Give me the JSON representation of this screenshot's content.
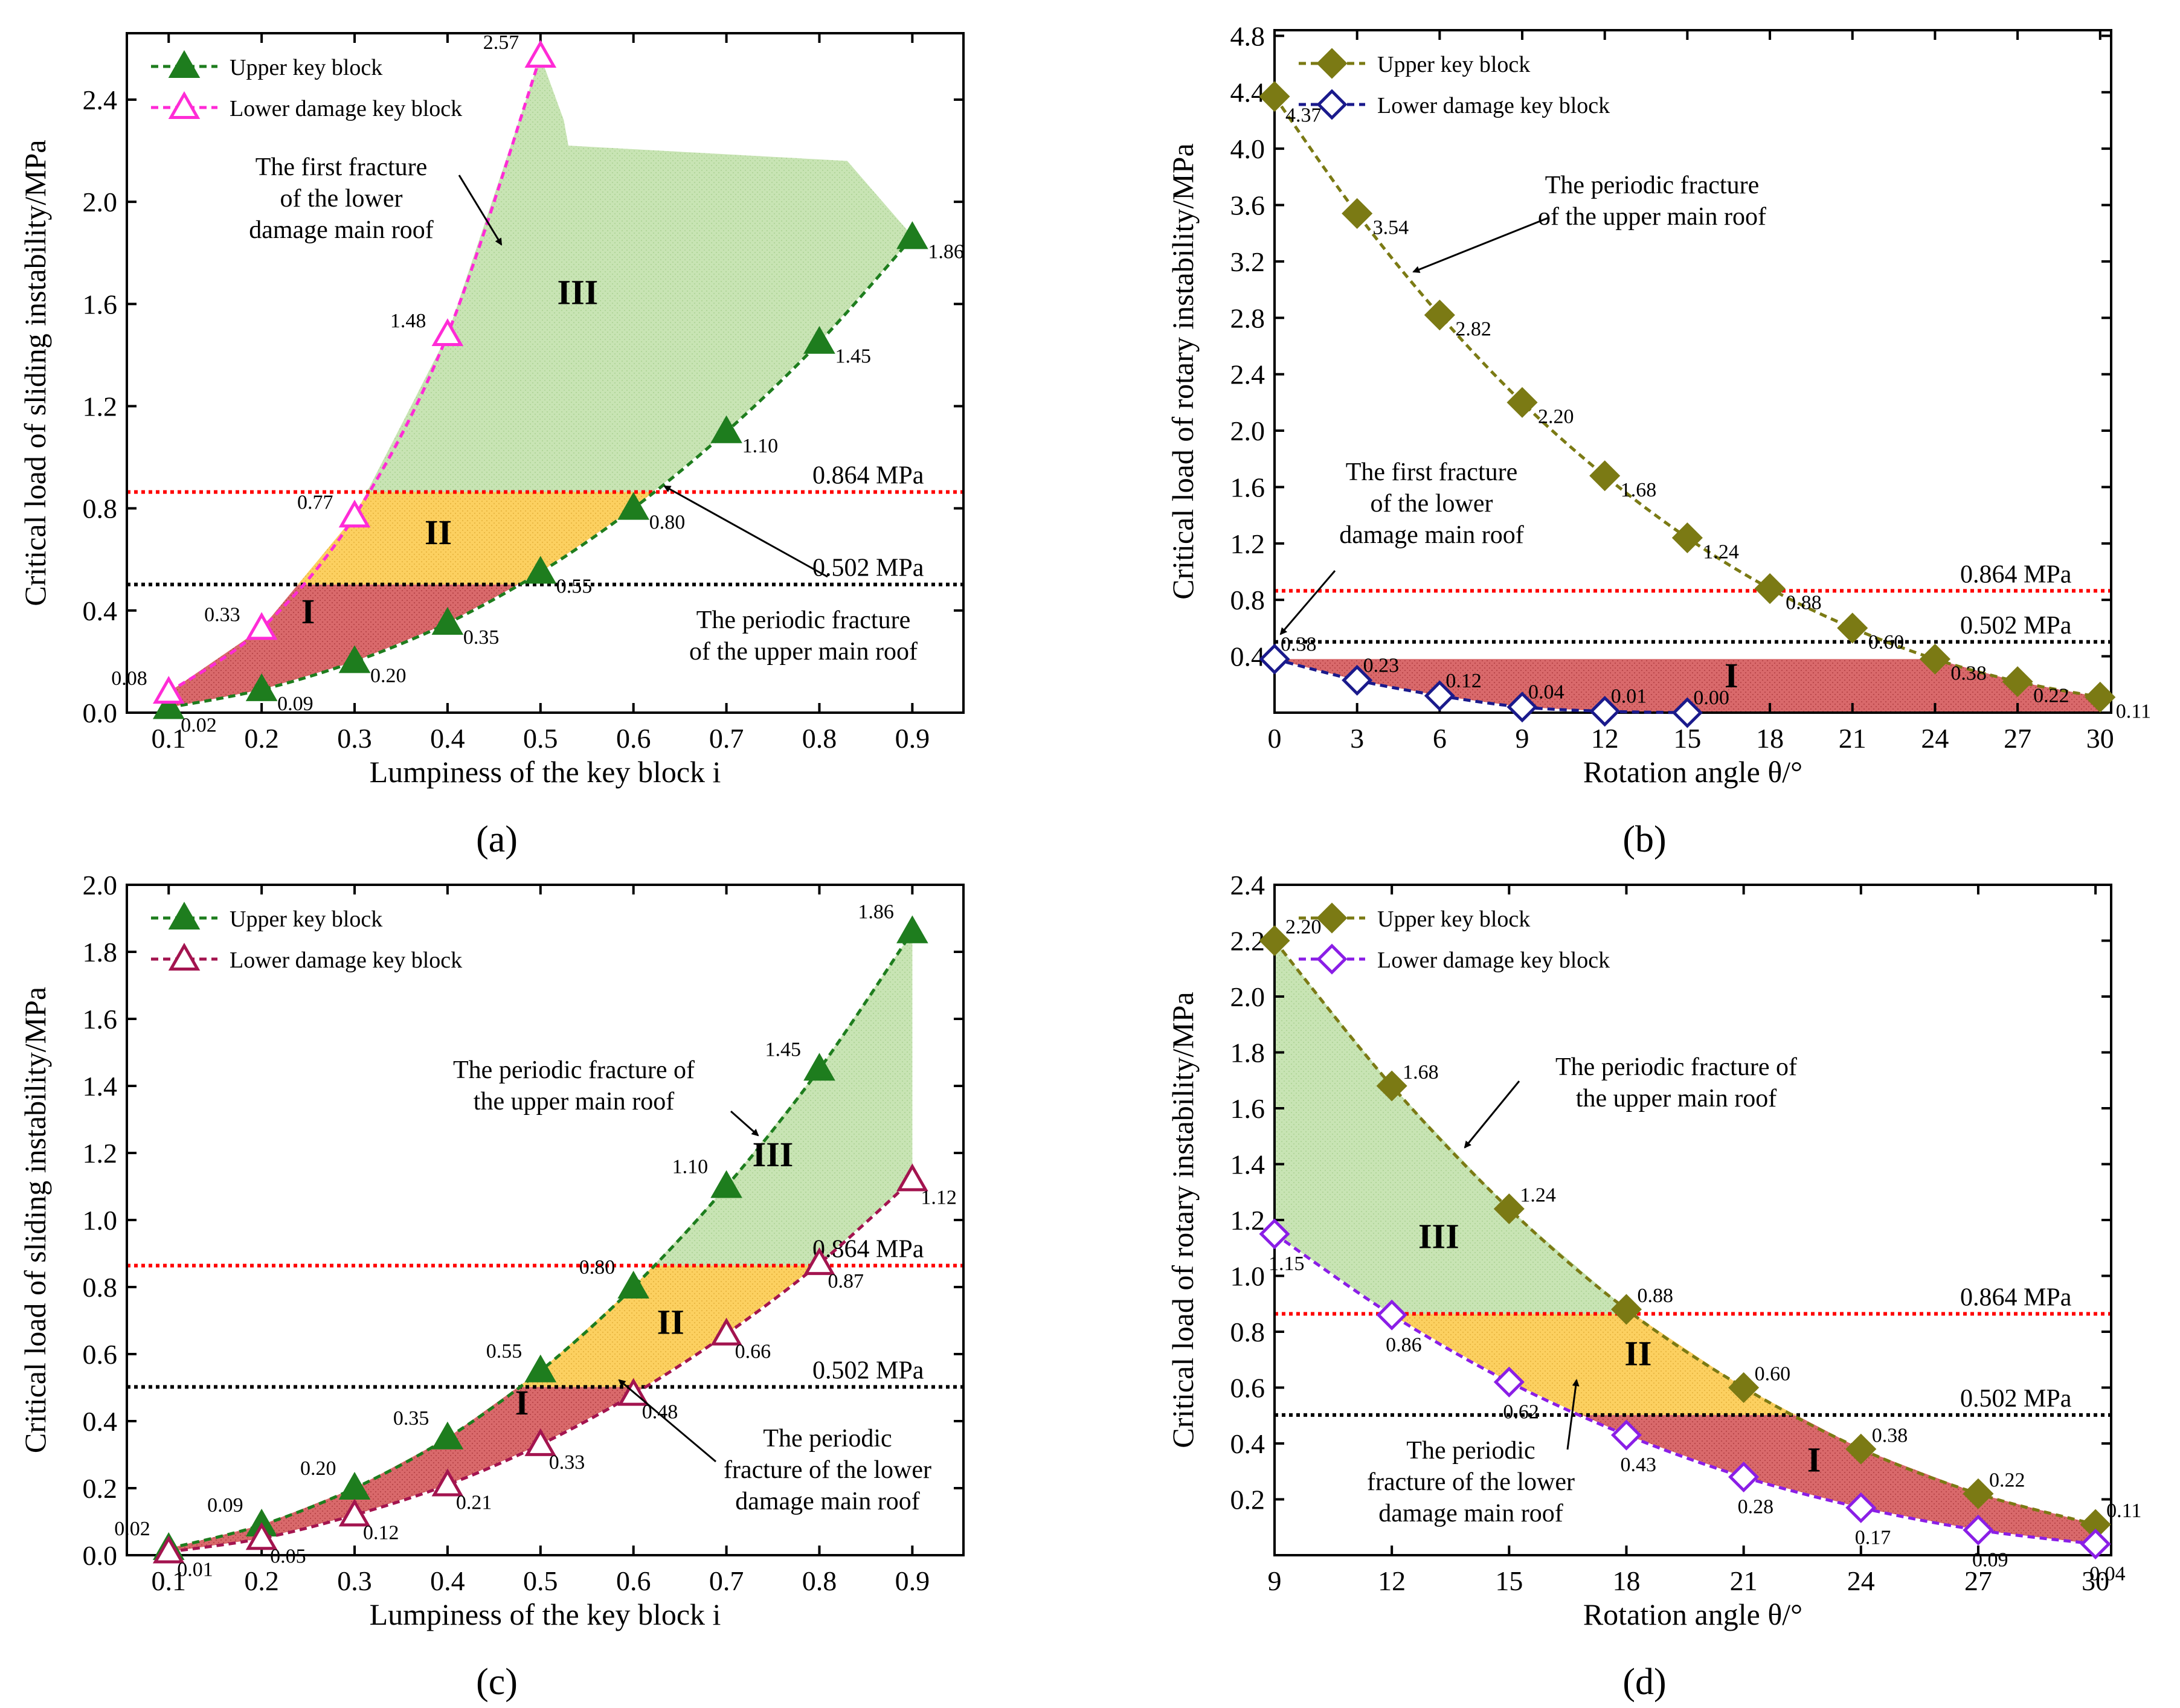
{
  "colors": {
    "upper_green": "#1e7d1e",
    "lower_magenta": "#ff2bd6",
    "olive": "#7b7a14",
    "navy": "#1a1a8c",
    "maroon": "#a3144f",
    "violet": "#8a1ee6",
    "red_line": "#ff0000",
    "black_line": "#000000",
    "region_I": "#d9696b",
    "region_II": "#fcd060",
    "region_III": "#c8e4b4"
  },
  "chart_data": [
    {
      "type": "line",
      "panel": "(a)",
      "xlabel": "Lumpiness of the key block i",
      "ylabel": "Critical load of sliding instability/MPa",
      "xlim": [
        0,
        0.95
      ],
      "ylim": [
        0,
        2.6
      ],
      "xticks": [
        "0.1",
        "0.2",
        "0.3",
        "0.4",
        "0.5",
        "0.6",
        "0.7",
        "0.8",
        "0.9"
      ],
      "yticks": [
        "0.0",
        "0.4",
        "0.8",
        "1.2",
        "1.6",
        "2.0",
        "2.4"
      ],
      "series": [
        {
          "name": "Upper key block",
          "x": [
            0.1,
            0.2,
            0.3,
            0.4,
            0.5,
            0.6,
            0.7,
            0.8,
            0.9
          ],
          "values": [
            0.02,
            0.09,
            0.2,
            0.35,
            0.55,
            0.8,
            1.1,
            1.45,
            1.86
          ],
          "labels": [
            "0.02",
            "0.09",
            "0.20",
            "0.35",
            "0.55",
            "0.80",
            "1.10",
            "1.45",
            "1.86"
          ],
          "color": "#1e7d1e",
          "marker": "filled-triangle"
        },
        {
          "name": "Lower damage key block",
          "x": [
            0.1,
            0.2,
            0.3,
            0.4,
            0.5
          ],
          "values": [
            0.08,
            0.33,
            0.77,
            1.48,
            2.57
          ],
          "labels": [
            "0.08",
            "0.33",
            "0.77",
            "1.48",
            "2.57"
          ],
          "color": "#ff2bd6",
          "marker": "open-triangle"
        }
      ],
      "hlines": [
        {
          "y": 0.864,
          "label": "0.864 MPa",
          "color": "#ff0000"
        },
        {
          "y": 0.502,
          "label": "0.502 MPa",
          "color": "#000000"
        }
      ],
      "regions": [
        "I",
        "II",
        "III"
      ],
      "annotations": [
        {
          "text": [
            "The first fracture",
            "of the lower",
            "damage main roof"
          ]
        },
        {
          "text": [
            "The periodic fracture",
            "of the upper main roof"
          ]
        }
      ],
      "panel_label": "a"
    },
    {
      "type": "line",
      "panel": "(b)",
      "xlabel": "Rotation angle θ/°",
      "ylabel": "Critical load of rotary instability/MPa",
      "xlim": [
        0,
        30
      ],
      "ylim": [
        0,
        4.8
      ],
      "xticks": [
        "0",
        "3",
        "6",
        "9",
        "12",
        "15",
        "18",
        "21",
        "24",
        "27",
        "30"
      ],
      "yticks": [
        "0.4",
        "0.8",
        "1.2",
        "1.6",
        "2.0",
        "2.4",
        "2.8",
        "3.2",
        "3.6",
        "4.0",
        "4.4",
        "4.8"
      ],
      "series": [
        {
          "name": "Upper key block",
          "x": [
            0,
            3,
            6,
            9,
            12,
            15,
            18,
            21,
            24,
            27,
            30
          ],
          "values": [
            4.37,
            3.54,
            2.82,
            2.2,
            1.68,
            1.24,
            0.88,
            0.6,
            0.38,
            0.22,
            0.11
          ],
          "labels": [
            "4.37",
            "3.54",
            "2.82",
            "2.20",
            "1.68",
            "1.24",
            "0.88",
            "0.60",
            "0.38",
            "0.22",
            "0.11"
          ],
          "color": "#7b7a14",
          "marker": "filled-diamond"
        },
        {
          "name": "Lower damage key block",
          "x": [
            0,
            3,
            6,
            9,
            12,
            15
          ],
          "values": [
            0.38,
            0.23,
            0.12,
            0.04,
            0.01,
            0.0
          ],
          "labels": [
            "0.38",
            "0.23",
            "0.12",
            "0.04",
            "0.01",
            "0.00"
          ],
          "color": "#1a1a8c",
          "marker": "open-diamond"
        }
      ],
      "hlines": [
        {
          "y": 0.864,
          "label": "0.864 MPa",
          "color": "#ff0000"
        },
        {
          "y": 0.502,
          "label": "0.502 MPa",
          "color": "#000000"
        }
      ],
      "regions": [
        "I"
      ],
      "annotations": [
        {
          "text": [
            "The periodic fracture",
            "of the upper main roof"
          ]
        },
        {
          "text": [
            "The first fracture",
            "of the lower",
            "damage main roof"
          ]
        }
      ],
      "panel_label": "b"
    },
    {
      "type": "line",
      "panel": "(c)",
      "xlabel": "Lumpiness of the key block i",
      "ylabel": "Critical load of sliding instability/MPa",
      "xlim": [
        0,
        0.95
      ],
      "ylim": [
        0,
        2.0
      ],
      "xticks": [
        "0.1",
        "0.2",
        "0.3",
        "0.4",
        "0.5",
        "0.6",
        "0.7",
        "0.8",
        "0.9"
      ],
      "yticks": [
        "0.0",
        "0.2",
        "0.4",
        "0.6",
        "0.8",
        "1.0",
        "1.2",
        "1.4",
        "1.6",
        "1.8",
        "2.0"
      ],
      "series": [
        {
          "name": "Upper key block",
          "x": [
            0.1,
            0.2,
            0.3,
            0.4,
            0.5,
            0.6,
            0.7,
            0.8,
            0.9
          ],
          "values": [
            0.02,
            0.09,
            0.2,
            0.35,
            0.55,
            0.8,
            1.1,
            1.45,
            1.86
          ],
          "labels": [
            "0.02",
            "0.09",
            "0.20",
            "0.35",
            "0.55",
            "0.80",
            "1.10",
            "1.45",
            "1.86"
          ],
          "color": "#1e7d1e",
          "marker": "filled-triangle"
        },
        {
          "name": "Lower damage key block",
          "x": [
            0.1,
            0.2,
            0.3,
            0.4,
            0.5,
            0.6,
            0.7,
            0.8,
            0.9
          ],
          "values": [
            0.01,
            0.05,
            0.12,
            0.21,
            0.33,
            0.48,
            0.66,
            0.87,
            1.12
          ],
          "labels": [
            "0.01",
            "0.05",
            "0.12",
            "0.21",
            "0.33",
            "0.48",
            "0.66",
            "0.87",
            "1.12"
          ],
          "color": "#a3144f",
          "marker": "open-triangle"
        }
      ],
      "hlines": [
        {
          "y": 0.864,
          "label": "0.864 MPa",
          "color": "#ff0000"
        },
        {
          "y": 0.502,
          "label": "0.502 MPa",
          "color": "#000000"
        }
      ],
      "regions": [
        "I",
        "II",
        "III"
      ],
      "annotations": [
        {
          "text": [
            "The periodic fracture of",
            "the upper main roof"
          ]
        },
        {
          "text": [
            "The periodic",
            "fracture of the lower",
            "damage main roof"
          ]
        }
      ],
      "panel_label": "c"
    },
    {
      "type": "line",
      "panel": "(d)",
      "xlabel": "Rotation angle θ/°",
      "ylabel": "Critical load of rotary instability/MPa",
      "xlim": [
        9,
        30
      ],
      "ylim": [
        0,
        2.4
      ],
      "xticks": [
        "9",
        "12",
        "15",
        "18",
        "21",
        "24",
        "27",
        "30"
      ],
      "yticks": [
        "0.2",
        "0.4",
        "0.6",
        "0.8",
        "1.0",
        "1.2",
        "1.4",
        "1.6",
        "1.8",
        "2.0",
        "2.2",
        "2.4"
      ],
      "series": [
        {
          "name": "Upper key block",
          "x": [
            9,
            12,
            15,
            18,
            21,
            24,
            27,
            30
          ],
          "values": [
            2.2,
            1.68,
            1.24,
            0.88,
            0.6,
            0.38,
            0.22,
            0.11
          ],
          "labels": [
            "2.20",
            "1.68",
            "1.24",
            "0.88",
            "0.60",
            "0.38",
            "0.22",
            "0.11"
          ],
          "color": "#7b7a14",
          "marker": "filled-diamond"
        },
        {
          "name": "Lower damage key block",
          "x": [
            9,
            12,
            15,
            18,
            21,
            24,
            27,
            30
          ],
          "values": [
            1.15,
            0.86,
            0.62,
            0.43,
            0.28,
            0.17,
            0.09,
            0.04
          ],
          "labels": [
            "1.15",
            "0.86",
            "0.62",
            "0.43",
            "0.28",
            "0.17",
            "0.09",
            "0.04"
          ],
          "color": "#8a1ee6",
          "marker": "open-diamond"
        }
      ],
      "hlines": [
        {
          "y": 0.864,
          "label": "0.864 MPa",
          "color": "#ff0000"
        },
        {
          "y": 0.502,
          "label": "0.502 MPa",
          "color": "#000000"
        }
      ],
      "regions": [
        "I",
        "II",
        "III"
      ],
      "annotations": [
        {
          "text": [
            "The periodic fracture of",
            "the upper main roof"
          ]
        },
        {
          "text": [
            "The periodic",
            "fracture of the lower",
            "damage main roof"
          ]
        }
      ],
      "panel_label": "d"
    }
  ]
}
